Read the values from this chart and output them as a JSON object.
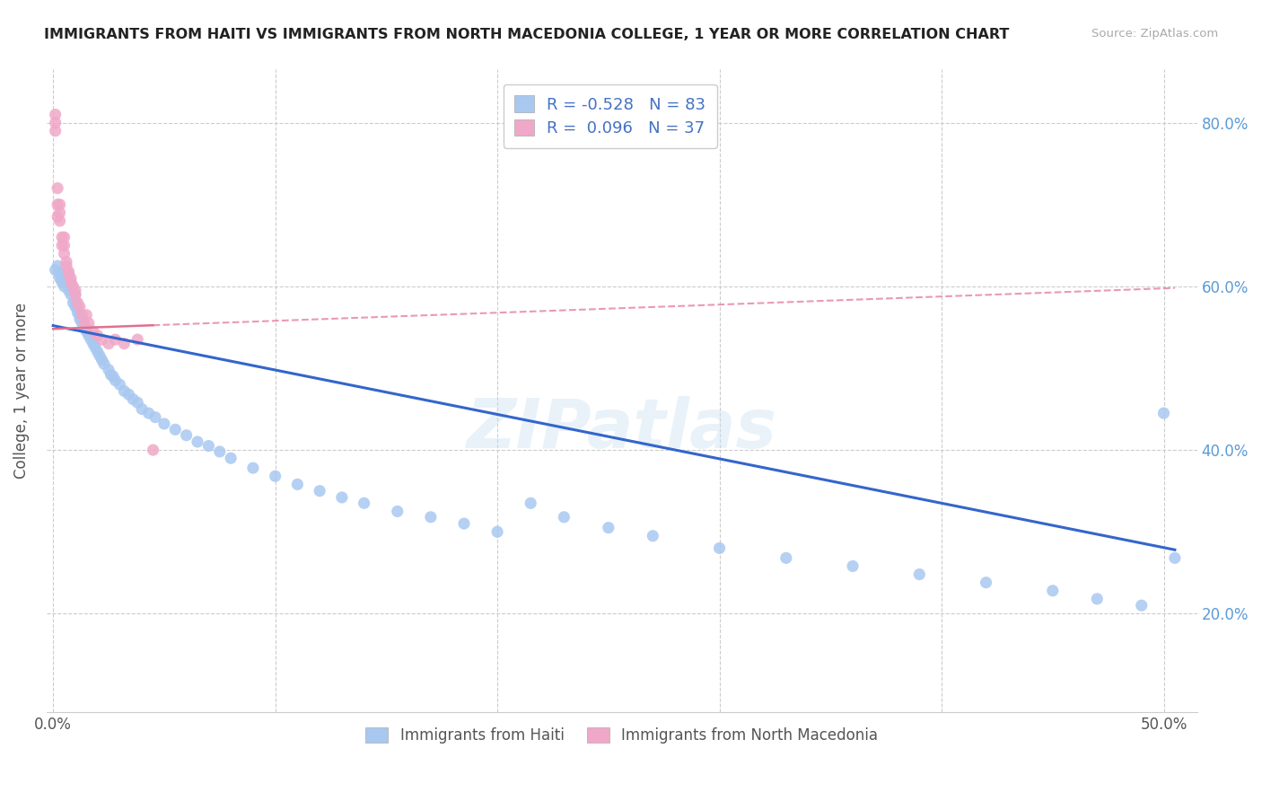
{
  "title": "IMMIGRANTS FROM HAITI VS IMMIGRANTS FROM NORTH MACEDONIA COLLEGE, 1 YEAR OR MORE CORRELATION CHART",
  "source": "Source: ZipAtlas.com",
  "ylabel": "College, 1 year or more",
  "xlim": [
    -0.003,
    0.515
  ],
  "ylim": [
    0.08,
    0.865
  ],
  "x_ticks": [
    0.0,
    0.1,
    0.2,
    0.3,
    0.4,
    0.5
  ],
  "x_tick_labels": [
    "0.0%",
    "",
    "",
    "",
    "",
    "50.0%"
  ],
  "y_ticks": [
    0.2,
    0.4,
    0.6,
    0.8
  ],
  "y_tick_labels": [
    "20.0%",
    "40.0%",
    "60.0%",
    "80.0%"
  ],
  "haiti_R": -0.528,
  "haiti_N": 83,
  "macedonia_R": 0.096,
  "macedonia_N": 37,
  "haiti_color": "#a8c8f0",
  "macedonia_color": "#f0a8c8",
  "haiti_line_color": "#3366cc",
  "macedonia_line_color": "#e07090",
  "watermark": "ZIPatlas",
  "legend_label_haiti": "Immigrants from Haiti",
  "legend_label_macedonia": "Immigrants from North Macedonia",
  "haiti_x": [
    0.001,
    0.002,
    0.003,
    0.003,
    0.004,
    0.004,
    0.005,
    0.005,
    0.005,
    0.006,
    0.006,
    0.006,
    0.007,
    0.007,
    0.007,
    0.008,
    0.008,
    0.008,
    0.009,
    0.009,
    0.01,
    0.01,
    0.01,
    0.011,
    0.011,
    0.012,
    0.012,
    0.013,
    0.013,
    0.014,
    0.015,
    0.015,
    0.016,
    0.017,
    0.018,
    0.019,
    0.02,
    0.021,
    0.022,
    0.023,
    0.025,
    0.026,
    0.027,
    0.028,
    0.03,
    0.032,
    0.034,
    0.036,
    0.038,
    0.04,
    0.043,
    0.046,
    0.05,
    0.055,
    0.06,
    0.065,
    0.07,
    0.075,
    0.08,
    0.09,
    0.1,
    0.11,
    0.12,
    0.13,
    0.14,
    0.155,
    0.17,
    0.185,
    0.2,
    0.215,
    0.23,
    0.25,
    0.27,
    0.3,
    0.33,
    0.36,
    0.39,
    0.42,
    0.45,
    0.47,
    0.49,
    0.5,
    0.505
  ],
  "haiti_y": [
    0.62,
    0.625,
    0.615,
    0.61,
    0.605,
    0.61,
    0.6,
    0.615,
    0.608,
    0.61,
    0.612,
    0.605,
    0.6,
    0.608,
    0.595,
    0.59,
    0.598,
    0.603,
    0.58,
    0.595,
    0.59,
    0.582,
    0.575,
    0.573,
    0.568,
    0.565,
    0.56,
    0.558,
    0.555,
    0.55,
    0.545,
    0.548,
    0.54,
    0.535,
    0.53,
    0.525,
    0.52,
    0.515,
    0.51,
    0.505,
    0.498,
    0.492,
    0.49,
    0.485,
    0.48,
    0.472,
    0.468,
    0.462,
    0.458,
    0.45,
    0.445,
    0.44,
    0.432,
    0.425,
    0.418,
    0.41,
    0.405,
    0.398,
    0.39,
    0.378,
    0.368,
    0.358,
    0.35,
    0.342,
    0.335,
    0.325,
    0.318,
    0.31,
    0.3,
    0.335,
    0.318,
    0.305,
    0.295,
    0.28,
    0.268,
    0.258,
    0.248,
    0.238,
    0.228,
    0.218,
    0.21,
    0.445,
    0.268
  ],
  "macedonia_x": [
    0.001,
    0.001,
    0.001,
    0.002,
    0.002,
    0.002,
    0.003,
    0.003,
    0.003,
    0.004,
    0.004,
    0.005,
    0.005,
    0.005,
    0.006,
    0.006,
    0.007,
    0.007,
    0.008,
    0.008,
    0.009,
    0.01,
    0.01,
    0.011,
    0.012,
    0.013,
    0.014,
    0.015,
    0.016,
    0.018,
    0.02,
    0.022,
    0.025,
    0.028,
    0.032,
    0.038,
    0.045
  ],
  "macedonia_y": [
    0.8,
    0.79,
    0.81,
    0.72,
    0.7,
    0.685,
    0.68,
    0.69,
    0.7,
    0.66,
    0.65,
    0.64,
    0.65,
    0.66,
    0.625,
    0.63,
    0.615,
    0.618,
    0.61,
    0.605,
    0.6,
    0.595,
    0.59,
    0.58,
    0.575,
    0.565,
    0.555,
    0.565,
    0.555,
    0.545,
    0.54,
    0.535,
    0.53,
    0.535,
    0.53,
    0.535,
    0.4
  ],
  "haiti_line_x0": 0.0,
  "haiti_line_y0": 0.552,
  "haiti_line_x1": 0.505,
  "haiti_line_y1": 0.278,
  "mac_line_x0": 0.0,
  "mac_line_y0": 0.548,
  "mac_line_x1": 0.505,
  "mac_line_y1": 0.598
}
